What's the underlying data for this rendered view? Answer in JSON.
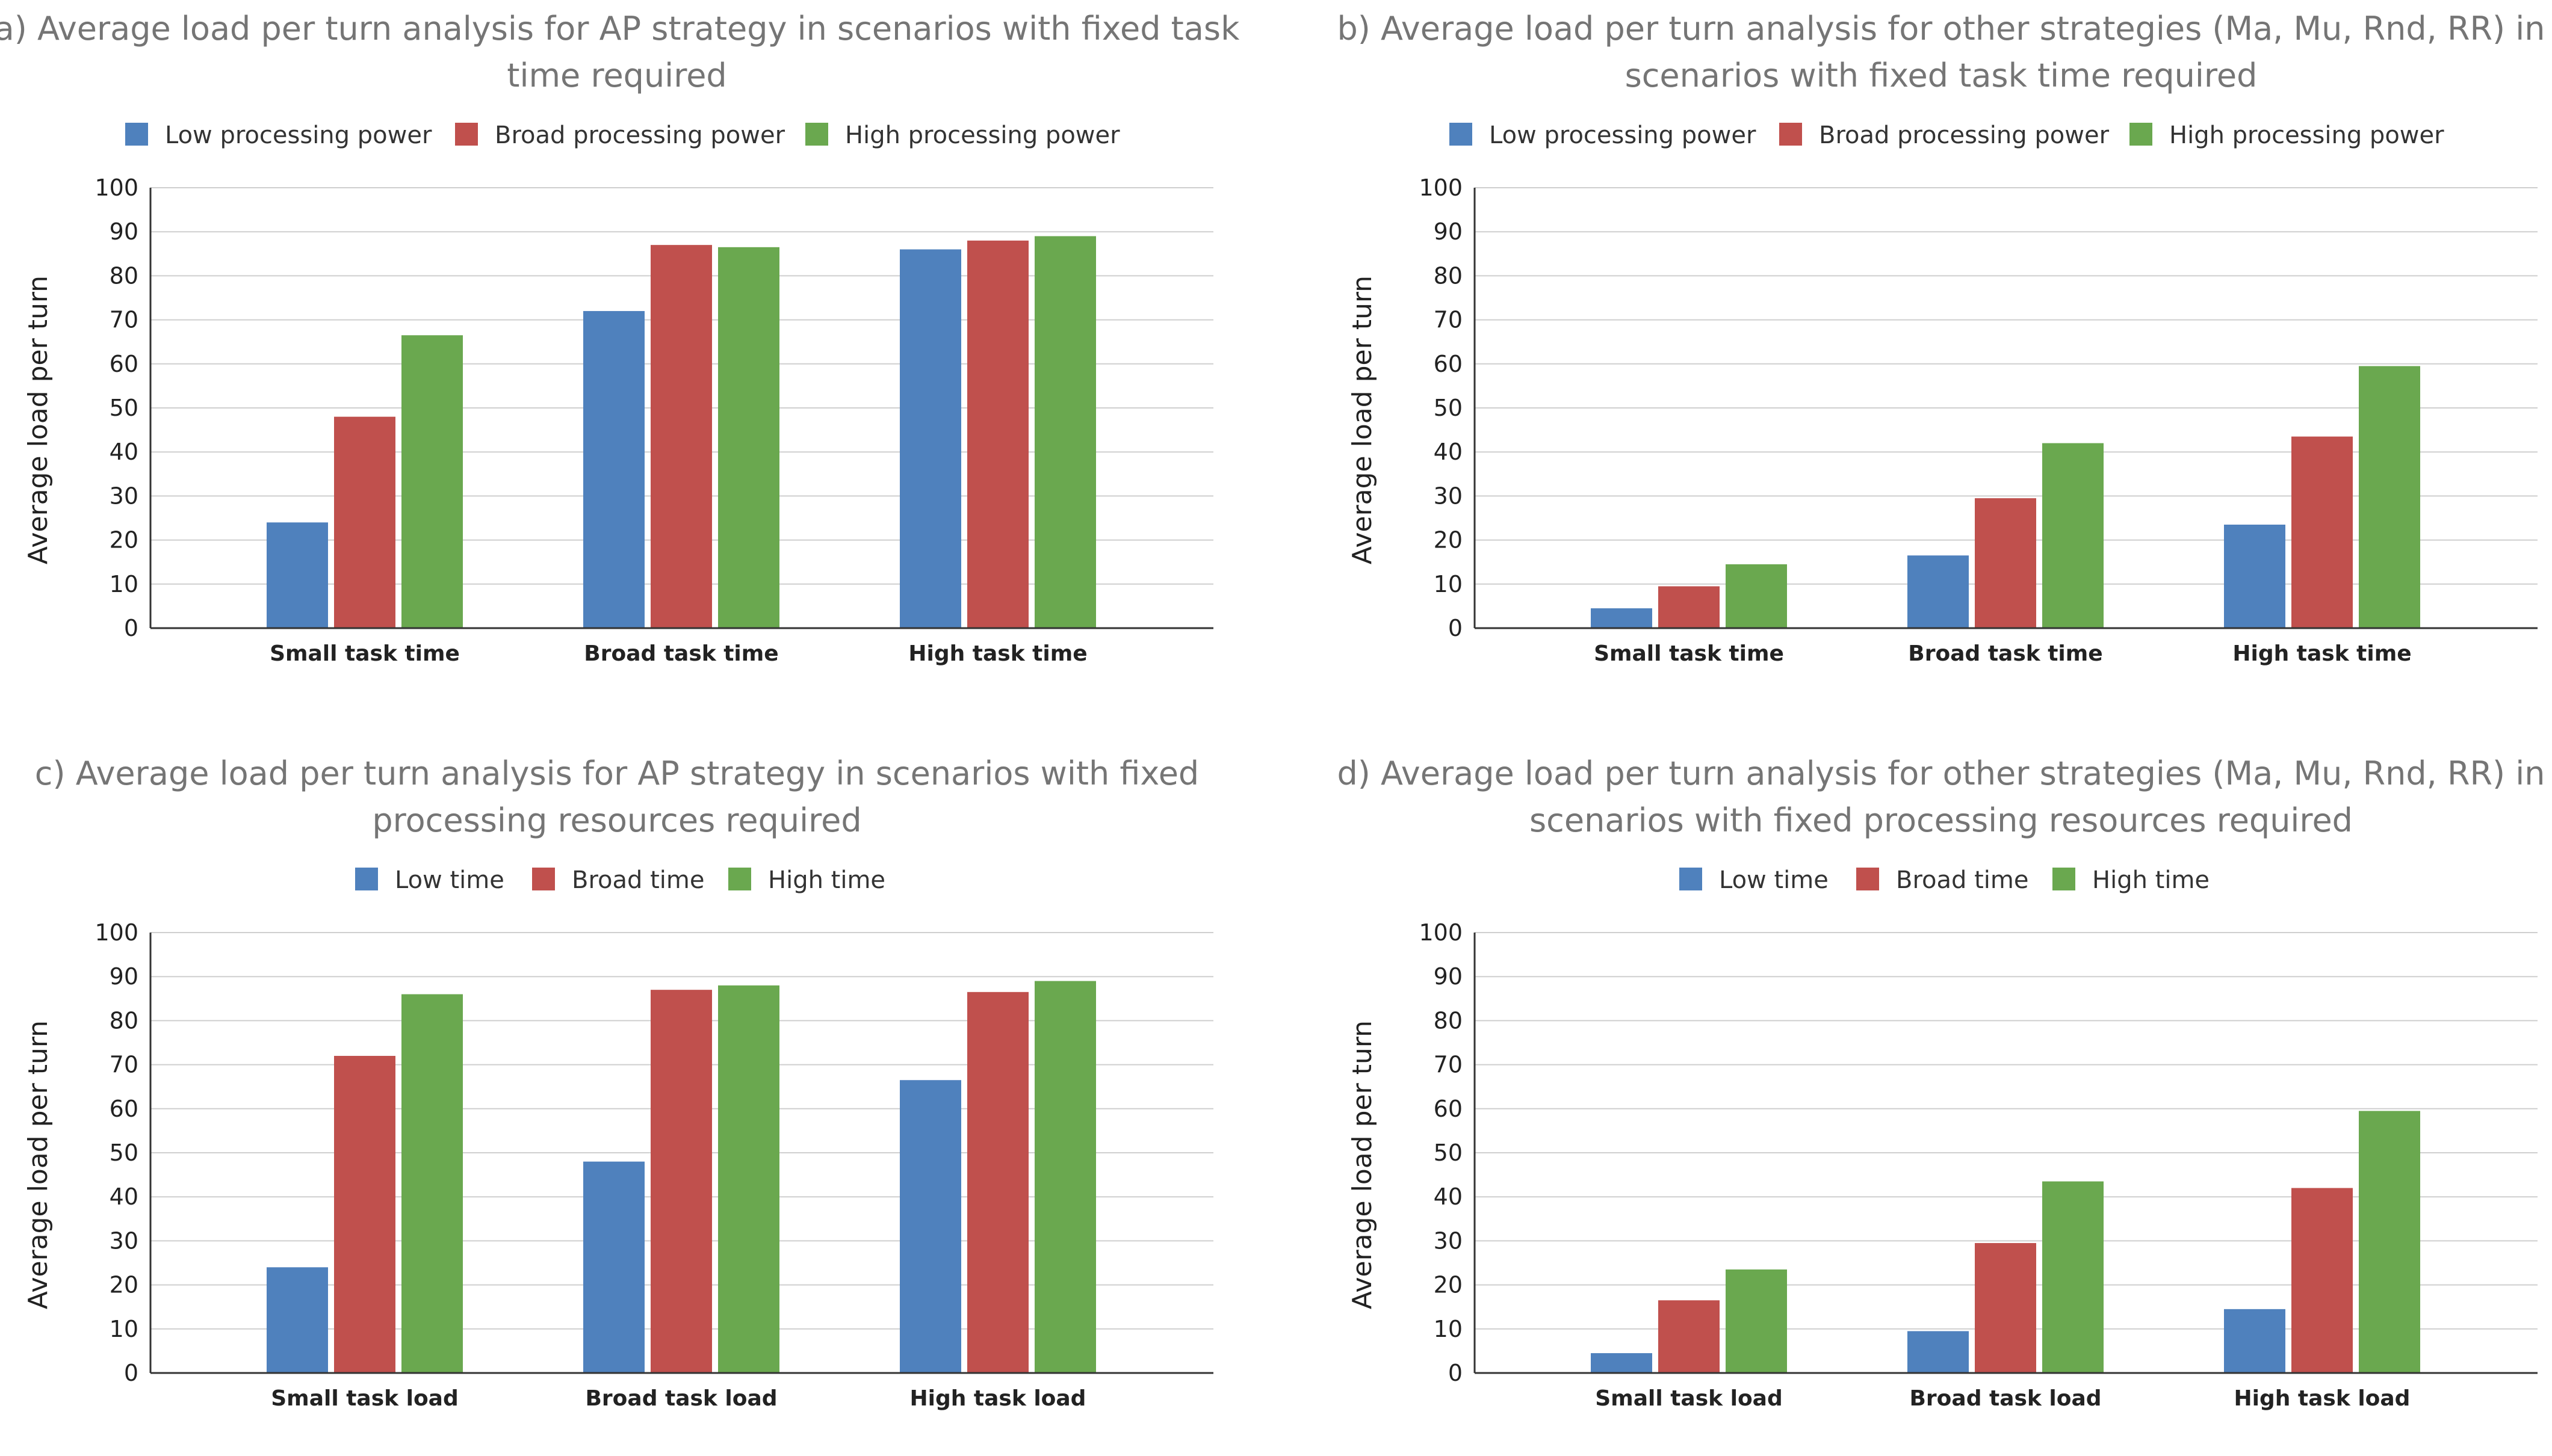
{
  "chart_data": [
    {
      "id": "a",
      "type": "bar",
      "title_lines": [
        "a) Average load per turn analysis for AP strategy in scenarios with fixed task",
        "time required"
      ],
      "ylabel": "Average load per turn",
      "xlabel": "",
      "ylim": [
        0,
        100
      ],
      "yticks": [
        "0",
        "10",
        "20",
        "30",
        "40",
        "50",
        "60",
        "70",
        "80",
        "90",
        "100"
      ],
      "grid": true,
      "legend_position": "top",
      "categories": [
        "Small task time",
        "Broad task time",
        "High task time"
      ],
      "series": [
        {
          "name": "Low processing power",
          "color": "#4f81bd",
          "values": [
            24,
            72,
            86
          ]
        },
        {
          "name": "Broad processing power",
          "color": "#c0504d",
          "values": [
            48,
            87,
            88
          ]
        },
        {
          "name": "High processing power",
          "color": "#6aa84f",
          "values": [
            66.5,
            86.5,
            89
          ]
        }
      ]
    },
    {
      "id": "b",
      "type": "bar",
      "title_lines": [
        "b) Average load per turn analysis for other strategies (Ma, Mu, Rnd, RR) in",
        "scenarios with fixed task time required"
      ],
      "ylabel": "Average load per turn",
      "xlabel": "",
      "ylim": [
        0,
        100
      ],
      "yticks": [
        "0",
        "10",
        "20",
        "30",
        "40",
        "50",
        "60",
        "70",
        "80",
        "90",
        "100"
      ],
      "grid": true,
      "legend_position": "top",
      "categories": [
        "Small task time",
        "Broad task time",
        "High task time"
      ],
      "series": [
        {
          "name": "Low processing power",
          "color": "#4f81bd",
          "values": [
            4.5,
            16.5,
            23.5
          ]
        },
        {
          "name": "Broad processing power",
          "color": "#c0504d",
          "values": [
            9.5,
            29.5,
            43.5
          ]
        },
        {
          "name": "High processing power",
          "color": "#6aa84f",
          "values": [
            14.5,
            42,
            59.5
          ]
        }
      ]
    },
    {
      "id": "c",
      "type": "bar",
      "title_lines": [
        "c) Average load per turn analysis for AP strategy in scenarios with fixed",
        "processing resources required"
      ],
      "ylabel": "Average load per turn",
      "xlabel": "",
      "ylim": [
        0,
        100
      ],
      "yticks": [
        "0",
        "10",
        "20",
        "30",
        "40",
        "50",
        "60",
        "70",
        "80",
        "90",
        "100"
      ],
      "grid": true,
      "legend_position": "top",
      "categories": [
        "Small task load",
        "Broad task load",
        "High task load"
      ],
      "series": [
        {
          "name": "Low time",
          "color": "#4f81bd",
          "values": [
            24,
            48,
            66.5
          ]
        },
        {
          "name": "Broad time",
          "color": "#c0504d",
          "values": [
            72,
            87,
            86.5
          ]
        },
        {
          "name": "High time",
          "color": "#6aa84f",
          "values": [
            86,
            88,
            89
          ]
        }
      ]
    },
    {
      "id": "d",
      "type": "bar",
      "title_lines": [
        "d) Average load per turn analysis for other strategies (Ma, Mu, Rnd, RR) in",
        "scenarios with fixed processing resources required"
      ],
      "ylabel": "Average load per turn",
      "xlabel": "",
      "ylim": [
        0,
        100
      ],
      "yticks": [
        "0",
        "10",
        "20",
        "30",
        "40",
        "50",
        "60",
        "70",
        "80",
        "90",
        "100"
      ],
      "grid": true,
      "legend_position": "top",
      "categories": [
        "Small task load",
        "Broad task load",
        "High task load"
      ],
      "series": [
        {
          "name": "Low time",
          "color": "#4f81bd",
          "values": [
            4.5,
            9.5,
            14.5
          ]
        },
        {
          "name": "Broad time",
          "color": "#c0504d",
          "values": [
            16.5,
            29.5,
            42
          ]
        },
        {
          "name": "High time",
          "color": "#6aa84f",
          "values": [
            23.5,
            43.5,
            59.5
          ]
        }
      ]
    }
  ]
}
